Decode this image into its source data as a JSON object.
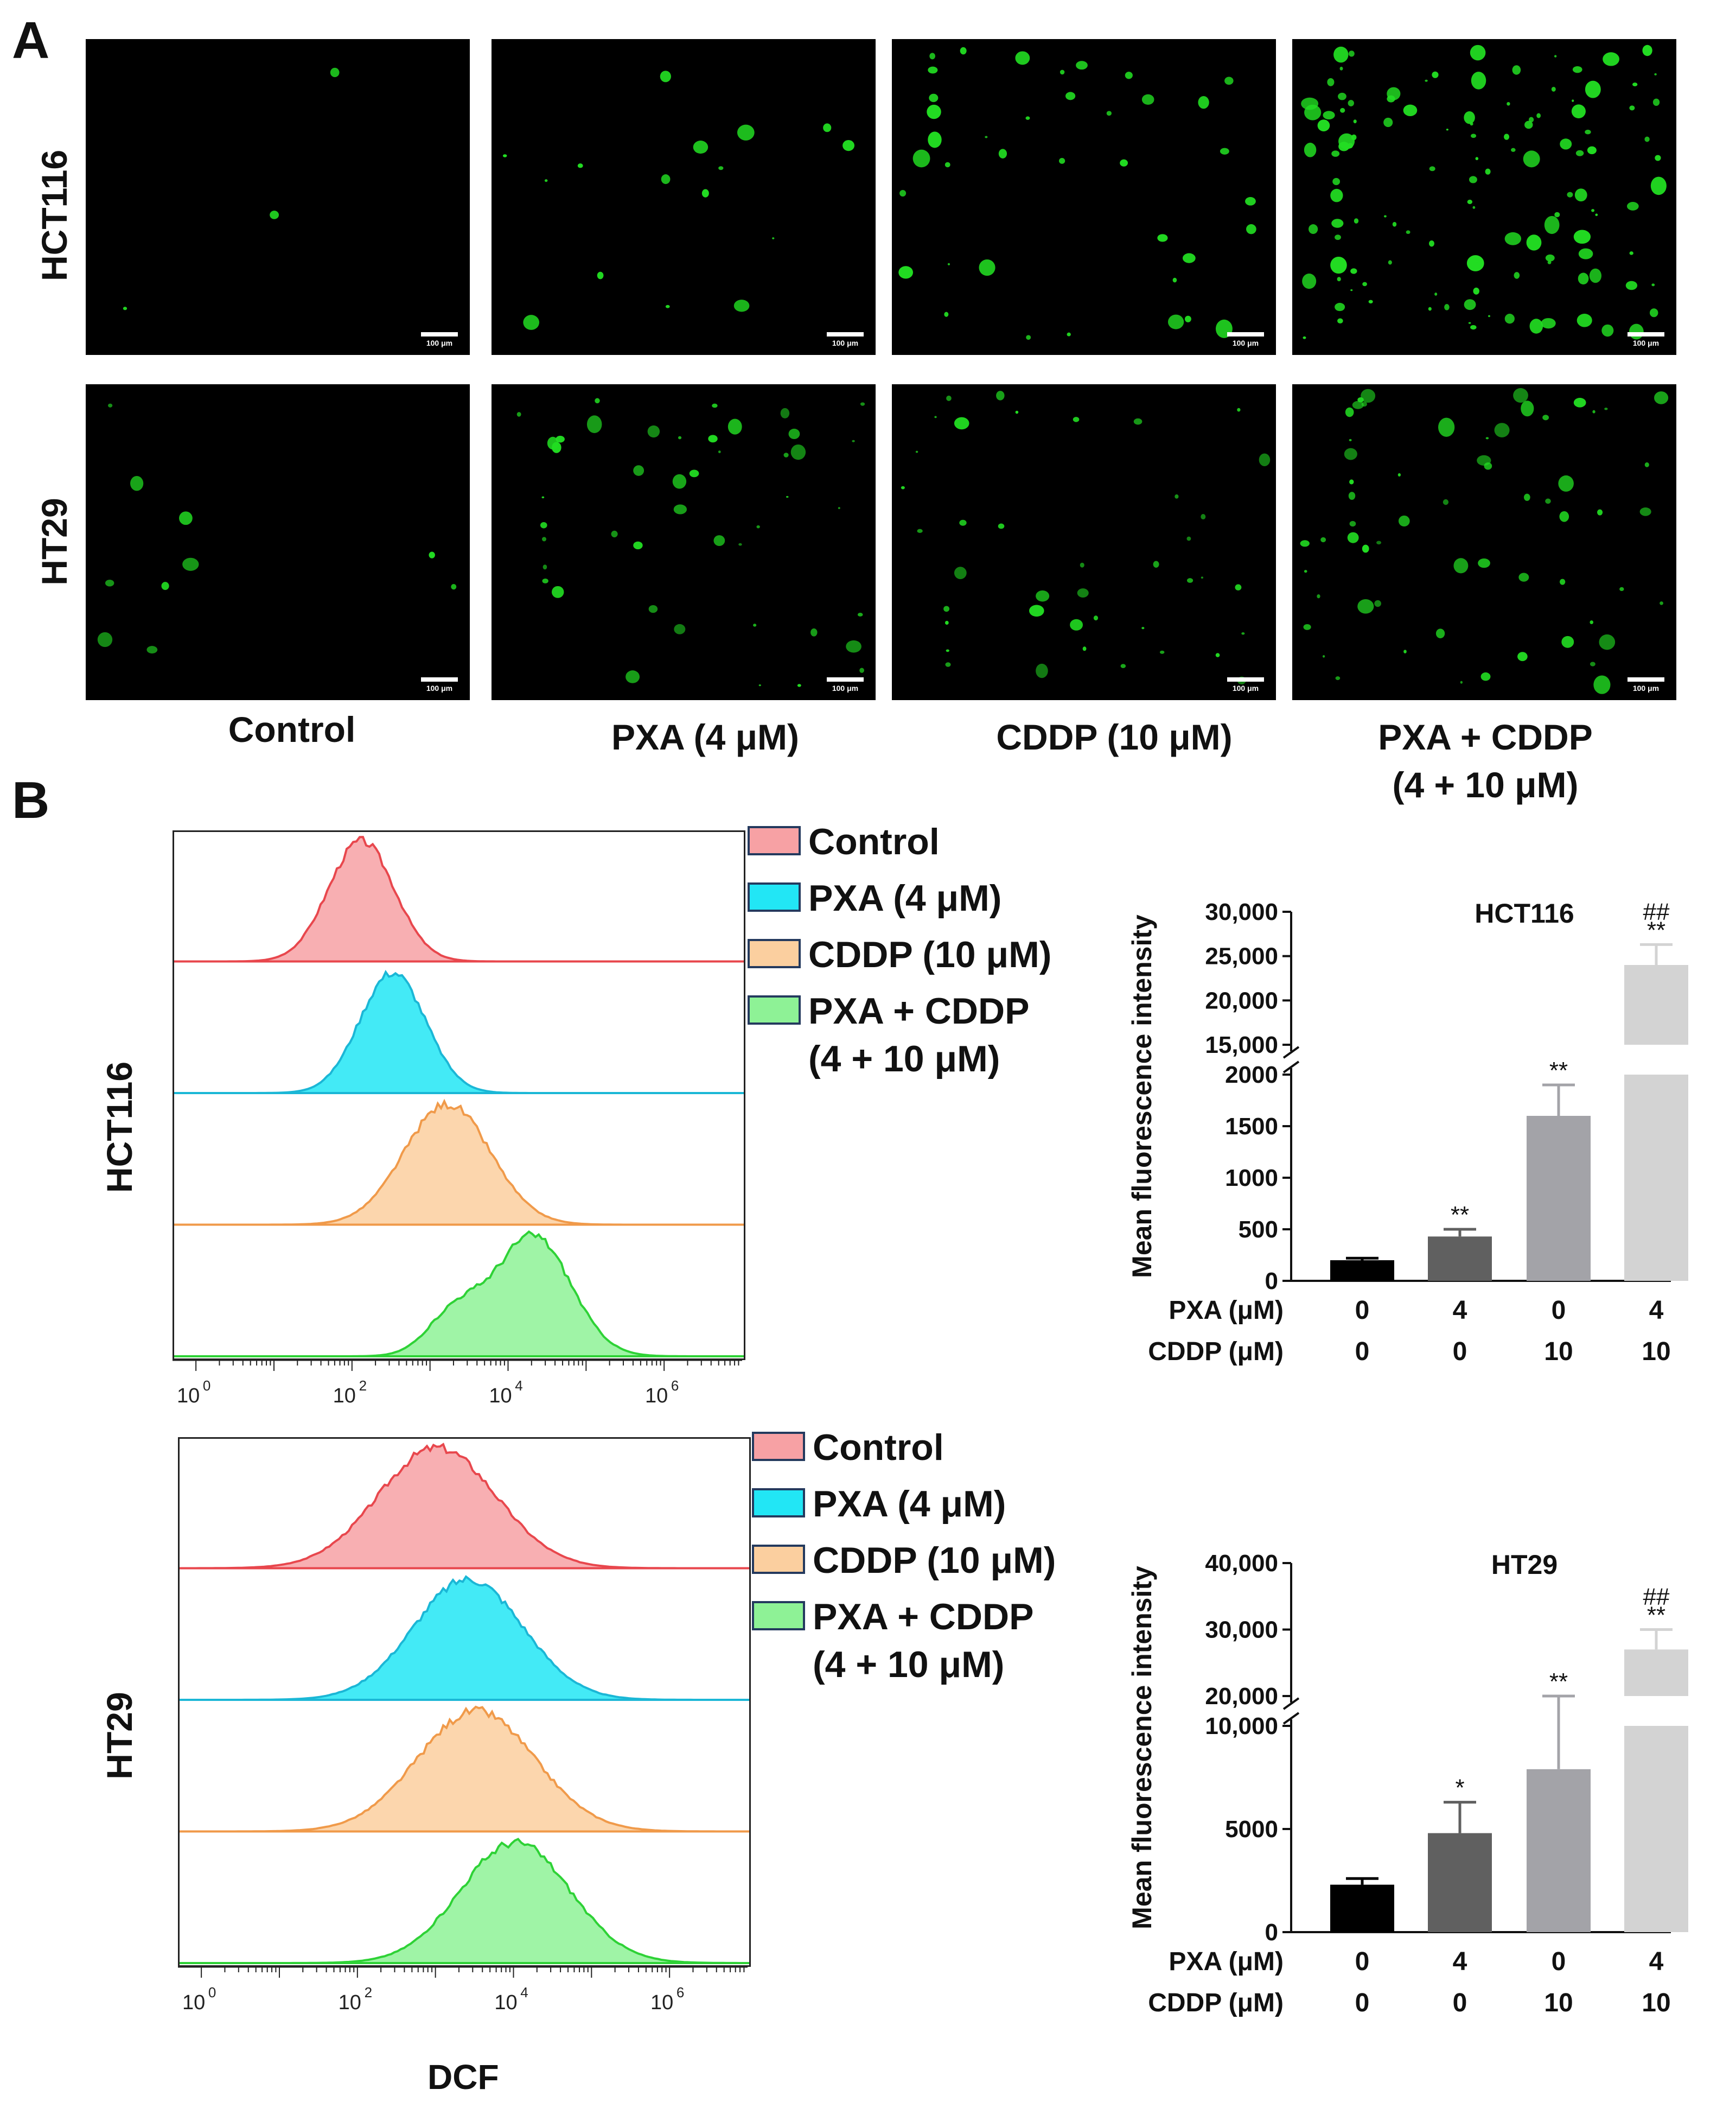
{
  "panels": {
    "a_label": "A",
    "b_label": "B"
  },
  "microscopy": {
    "rows": [
      "HCT116",
      "HT29"
    ],
    "conditions": [
      "Control",
      "PXA (4 μM)",
      "CDDP (10 μM)",
      "PXA + CDDP\n(4 + 10 μM)"
    ],
    "condition_lines": [
      [
        "Control"
      ],
      [
        "PXA (4 μM)"
      ],
      [
        "CDDP (10 μM)"
      ],
      [
        "PXA + CDDP",
        "(4 + 10 μM)"
      ]
    ],
    "scale_bar_text": "100 μm",
    "cell_color": "#22dd22"
  },
  "flow": {
    "rows": [
      "HCT116",
      "HT29"
    ],
    "legend": [
      {
        "line1": "Control",
        "line2": "",
        "fill": "#f7a1a4",
        "stroke": "#e8474d"
      },
      {
        "line1": "PXA (4 μM)",
        "line2": "",
        "fill": "#22e6f5",
        "stroke": "#1bb7d6"
      },
      {
        "line1": "CDDP (10 μM)",
        "line2": "",
        "fill": "#fbcf9f",
        "stroke": "#f09a4a"
      },
      {
        "line1": "PXA + CDDP",
        "line2": "(4 + 10 μM)",
        "fill": "#8ef296",
        "stroke": "#2ed236"
      }
    ],
    "x_ticks": [
      "10",
      "10",
      "10",
      "10"
    ],
    "x_tick_exps": [
      "0",
      "2",
      "4",
      "6"
    ],
    "x_axis_label": "DCF"
  },
  "chart_data": [
    {
      "type": "bar",
      "title": "HCT116",
      "ylabel": "Mean fluorescence intensity",
      "categories": [
        "PXA 0 / CDDP 0",
        "PXA 4 / CDDP 0",
        "PXA 0 / CDDP 10",
        "PXA 4 / CDDP 10"
      ],
      "values": [
        200,
        430,
        1600,
        24000
      ],
      "errors": [
        20,
        70,
        300,
        2300
      ],
      "colors": [
        "#000000",
        "#606060",
        "#a3a3a8",
        "#d3d3d3"
      ],
      "significance": [
        "",
        "**",
        "**",
        "##\n**"
      ],
      "y_ticks_lower": [
        "0",
        "500",
        "1000",
        "1500",
        "2000"
      ],
      "y_ticks_upper": [
        "15,000",
        "20,000",
        "25,000",
        "30,000"
      ],
      "ylim_lower": [
        0,
        2000
      ],
      "ylim_upper": [
        15000,
        30000
      ],
      "row_labels": [
        "PXA (μM)",
        "CDDP (μM)"
      ],
      "row_values": [
        [
          "0",
          "4",
          "0",
          "4"
        ],
        [
          "0",
          "0",
          "10",
          "10"
        ]
      ]
    },
    {
      "type": "bar",
      "title": "HT29",
      "ylabel": "Mean fluorescence intensity",
      "categories": [
        "PXA 0 / CDDP 0",
        "PXA 4 / CDDP 0",
        "PXA 0 / CDDP 10",
        "PXA 4 / CDDP 10"
      ],
      "values": [
        2300,
        4800,
        7900,
        27000
      ],
      "errors": [
        300,
        1500,
        2400,
        3000
      ],
      "colors": [
        "#000000",
        "#606060",
        "#a3a3a8",
        "#d3d3d3"
      ],
      "significance": [
        "",
        "*",
        "**",
        "##\n**"
      ],
      "y_ticks_lower": [
        "0",
        "5000",
        "10,000"
      ],
      "y_ticks_upper": [
        "20,000",
        "30,000",
        "40,000"
      ],
      "ylim_lower": [
        0,
        10000
      ],
      "ylim_upper": [
        20000,
        40000
      ],
      "row_labels": [
        "PXA (μM)",
        "CDDP (μM)"
      ],
      "row_values": [
        [
          "0",
          "4",
          "0",
          "4"
        ],
        [
          "0",
          "0",
          "10",
          "10"
        ]
      ]
    }
  ]
}
